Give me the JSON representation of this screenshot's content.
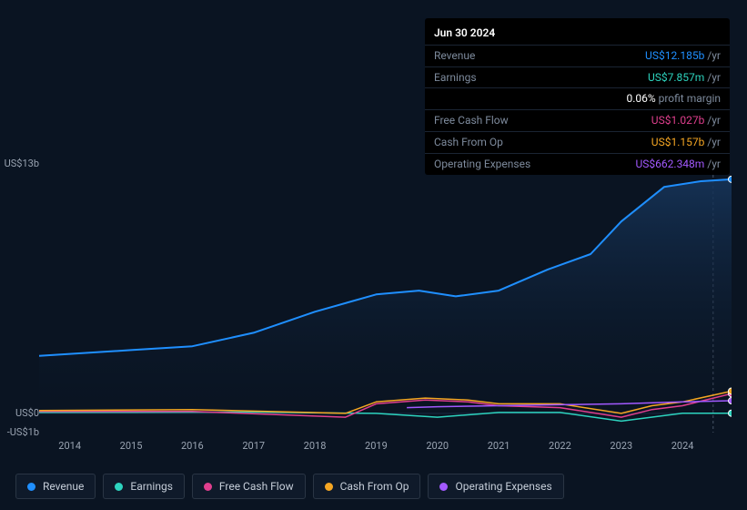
{
  "tooltip": {
    "date": "Jun 30 2024",
    "rows": [
      {
        "label": "Revenue",
        "value": "US$12.185b",
        "suffix": " /yr",
        "color": "#1f8fff"
      },
      {
        "label": "Earnings",
        "value": "US$7.857m",
        "suffix": " /yr",
        "color": "#2dd4bf"
      },
      {
        "label": "",
        "value": "0.06%",
        "suffix": " profit margin",
        "color": "#ffffff"
      },
      {
        "label": "Free Cash Flow",
        "value": "US$1.027b",
        "suffix": " /yr",
        "color": "#e03f8e"
      },
      {
        "label": "Cash From Op",
        "value": "US$1.157b",
        "suffix": " /yr",
        "color": "#f5a623"
      },
      {
        "label": "Operating Expenses",
        "value": "US$662.348m",
        "suffix": " /yr",
        "color": "#a259ff"
      }
    ]
  },
  "chart": {
    "type": "line",
    "background": "#0a1422",
    "plot_bg_top": "none",
    "ylim": [
      -1,
      13
    ],
    "y_axis": [
      {
        "label": "US$13b",
        "v": 13
      },
      {
        "label": "US$0",
        "v": 0
      },
      {
        "label": "-US$1b",
        "v": -1
      }
    ],
    "x_years": [
      "2014",
      "2015",
      "2016",
      "2017",
      "2018",
      "2019",
      "2020",
      "2021",
      "2022",
      "2023",
      "2024"
    ],
    "x_range": [
      2013.5,
      2024.8
    ],
    "marker_x": 2024.5,
    "grid_color": "#182538",
    "gradient_fill": {
      "from": "#11263f",
      "to": "#0a1422"
    },
    "series": [
      {
        "name": "Revenue",
        "color": "#1f8fff",
        "width": 2,
        "area": true,
        "points": [
          [
            2013.5,
            3.0
          ],
          [
            2014,
            3.1
          ],
          [
            2015,
            3.3
          ],
          [
            2016,
            3.5
          ],
          [
            2017,
            4.2
          ],
          [
            2018,
            5.3
          ],
          [
            2019,
            6.2
          ],
          [
            2019.7,
            6.4
          ],
          [
            2020.3,
            6.1
          ],
          [
            2021,
            6.4
          ],
          [
            2021.8,
            7.5
          ],
          [
            2022.5,
            8.3
          ],
          [
            2023,
            10.0
          ],
          [
            2023.7,
            11.8
          ],
          [
            2024.3,
            12.1
          ],
          [
            2024.8,
            12.2
          ]
        ]
      },
      {
        "name": "Earnings",
        "color": "#2dd4bf",
        "width": 1.5,
        "area": false,
        "points": [
          [
            2013.5,
            0.05
          ],
          [
            2015,
            0.06
          ],
          [
            2017,
            0.07
          ],
          [
            2019,
            0.0
          ],
          [
            2020,
            -0.2
          ],
          [
            2021,
            0.05
          ],
          [
            2022,
            0.05
          ],
          [
            2023,
            -0.4
          ],
          [
            2024,
            0.01
          ],
          [
            2024.8,
            0.01
          ]
        ]
      },
      {
        "name": "Free Cash Flow",
        "color": "#e03f8e",
        "width": 1.5,
        "area": false,
        "points": [
          [
            2013.5,
            0.1
          ],
          [
            2016,
            0.1
          ],
          [
            2018.5,
            -0.2
          ],
          [
            2019,
            0.5
          ],
          [
            2019.8,
            0.7
          ],
          [
            2020.5,
            0.6
          ],
          [
            2021,
            0.4
          ],
          [
            2022,
            0.3
          ],
          [
            2023,
            -0.2
          ],
          [
            2023.5,
            0.2
          ],
          [
            2024,
            0.4
          ],
          [
            2024.8,
            1.03
          ]
        ]
      },
      {
        "name": "Cash From Op",
        "color": "#f5a623",
        "width": 1.5,
        "area": false,
        "points": [
          [
            2013.5,
            0.15
          ],
          [
            2016,
            0.2
          ],
          [
            2018.5,
            0.0
          ],
          [
            2019,
            0.6
          ],
          [
            2019.8,
            0.8
          ],
          [
            2020.5,
            0.7
          ],
          [
            2021,
            0.5
          ],
          [
            2022,
            0.5
          ],
          [
            2023,
            0.0
          ],
          [
            2023.5,
            0.4
          ],
          [
            2024,
            0.6
          ],
          [
            2024.8,
            1.16
          ]
        ]
      },
      {
        "name": "Operating Expenses",
        "color": "#a259ff",
        "width": 1.5,
        "area": false,
        "points": [
          [
            2019.5,
            0.3
          ],
          [
            2020,
            0.35
          ],
          [
            2021,
            0.4
          ],
          [
            2022,
            0.45
          ],
          [
            2023,
            0.5
          ],
          [
            2024,
            0.6
          ],
          [
            2024.8,
            0.66
          ]
        ]
      }
    ]
  },
  "legend": [
    {
      "label": "Revenue",
      "color": "#1f8fff",
      "name": "legend-revenue"
    },
    {
      "label": "Earnings",
      "color": "#2dd4bf",
      "name": "legend-earnings"
    },
    {
      "label": "Free Cash Flow",
      "color": "#e03f8e",
      "name": "legend-fcf"
    },
    {
      "label": "Cash From Op",
      "color": "#f5a623",
      "name": "legend-cfo"
    },
    {
      "label": "Operating Expenses",
      "color": "#a259ff",
      "name": "legend-opex"
    }
  ]
}
